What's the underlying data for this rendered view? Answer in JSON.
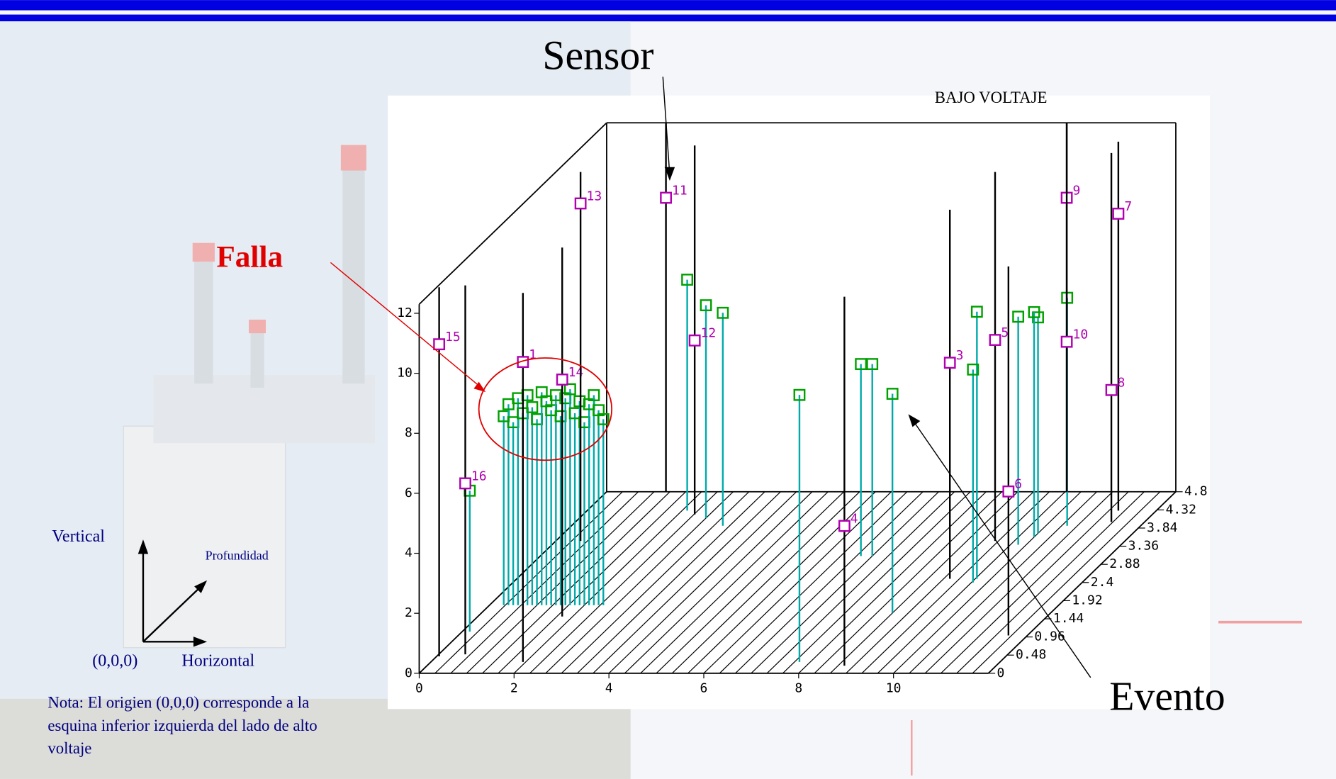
{
  "slide": {
    "sensor_label": "Sensor",
    "fault_label": "Falla",
    "event_label": "Evento",
    "axis_vertical": "Vertical",
    "axis_depth": "Profundidad",
    "axis_horizontal": "Horizontal",
    "origin": "(0,0,0)",
    "note": [
      "Nota: El origien (0,0,0) corresponde a la",
      "esquina inferior izquierda del lado de alto",
      "voltaje"
    ]
  },
  "chart_data": {
    "type": "scatter3d",
    "title": "BAJO VOLTAJE",
    "xlim": [
      0,
      12
    ],
    "xticks": [
      0,
      2,
      4,
      6,
      8,
      10
    ],
    "depthlim": [
      0,
      4.8
    ],
    "depthticks": [
      0,
      0.48,
      0.96,
      1.44,
      1.92,
      2.4,
      2.88,
      3.36,
      3.84,
      4.32,
      4.8
    ],
    "zlim": [
      0,
      12.3
    ],
    "zticks": [
      0,
      2,
      4,
      6,
      8,
      10,
      12
    ],
    "sensor_color": "#b000b0",
    "event_color": "#00a000",
    "stem_color": "#00aaaa",
    "sensors": [
      {
        "label": "15",
        "x": 0.05,
        "depth": 0.45,
        "z": 10.4
      },
      {
        "label": "16",
        "x": 0.56,
        "depth": 0.5,
        "z": 5.7
      },
      {
        "label": "1",
        "x": 1.94,
        "depth": 0.3,
        "z": 10.0
      },
      {
        "label": "14",
        "x": 1.78,
        "depth": 1.5,
        "z": 7.9
      },
      {
        "label": "13",
        "x": 0.52,
        "depth": 3.5,
        "z": 11.25
      },
      {
        "label": "11",
        "x": 1.25,
        "depth": 4.8,
        "z": 9.8
      },
      {
        "label": "12",
        "x": 2.35,
        "depth": 4.2,
        "z": 5.8
      },
      {
        "label": "4",
        "x": 8.8,
        "depth": 0.2,
        "z": 4.66
      },
      {
        "label": "3",
        "x": 9.13,
        "depth": 2.5,
        "z": 7.2
      },
      {
        "label": "5",
        "x": 9.26,
        "depth": 3.5,
        "z": 6.7
      },
      {
        "label": "6",
        "x": 11.6,
        "depth": 1.0,
        "z": 4.8
      },
      {
        "label": "9",
        "x": 9.7,
        "depth": 4.8,
        "z": 9.8
      },
      {
        "label": "10",
        "x": 9.7,
        "depth": 4.8,
        "z": 5.0
      },
      {
        "label": "7",
        "x": 11.2,
        "depth": 4.3,
        "z": 9.9
      },
      {
        "label": "8",
        "x": 11.3,
        "depth": 4.0,
        "z": 4.4
      }
    ],
    "events": [
      {
        "x": 7.77,
        "depth": 0.3,
        "z": 8.9
      },
      {
        "x": 2.11,
        "depth": 4.3,
        "z": 7.7
      },
      {
        "x": 2.67,
        "depth": 4.1,
        "z": 7.1
      },
      {
        "x": 3.19,
        "depth": 3.9,
        "z": 7.1
      },
      {
        "x": 0.16,
        "depth": 1.1,
        "z": 4.7
      },
      {
        "x": 6.76,
        "depth": 3.1,
        "z": 6.4
      },
      {
        "x": 7.0,
        "depth": 3.1,
        "z": 6.4
      },
      {
        "x": 8.66,
        "depth": 1.6,
        "z": 7.3
      },
      {
        "x": 9.7,
        "depth": 2.5,
        "z": 8.9
      },
      {
        "x": 9.7,
        "depth": 2.4,
        "z": 7.1
      },
      {
        "x": 9.83,
        "depth": 3.4,
        "z": 7.6
      },
      {
        "x": 10.0,
        "depth": 3.7,
        "z": 7.2
      },
      {
        "x": 10.0,
        "depth": 3.6,
        "z": 7.5
      },
      {
        "x": 10.45,
        "depth": 3.9,
        "z": 7.6
      },
      {
        "x": 0.3,
        "depth": 1.8,
        "z": 6.3
      },
      {
        "x": 0.4,
        "depth": 1.8,
        "z": 6.7
      },
      {
        "x": 0.5,
        "depth": 1.8,
        "z": 6.1
      },
      {
        "x": 0.6,
        "depth": 1.8,
        "z": 6.9
      },
      {
        "x": 0.7,
        "depth": 1.8,
        "z": 6.4
      },
      {
        "x": 0.8,
        "depth": 1.8,
        "z": 7.0
      },
      {
        "x": 0.9,
        "depth": 1.8,
        "z": 6.6
      },
      {
        "x": 1.0,
        "depth": 1.8,
        "z": 6.2
      },
      {
        "x": 1.1,
        "depth": 1.8,
        "z": 7.1
      },
      {
        "x": 1.2,
        "depth": 1.8,
        "z": 6.8
      },
      {
        "x": 1.3,
        "depth": 1.8,
        "z": 6.5
      },
      {
        "x": 1.4,
        "depth": 1.8,
        "z": 7.0
      },
      {
        "x": 1.5,
        "depth": 1.8,
        "z": 6.3
      },
      {
        "x": 1.6,
        "depth": 1.8,
        "z": 6.9
      },
      {
        "x": 1.7,
        "depth": 1.8,
        "z": 7.2
      },
      {
        "x": 1.8,
        "depth": 1.8,
        "z": 6.4
      },
      {
        "x": 1.9,
        "depth": 1.8,
        "z": 6.8
      },
      {
        "x": 2.0,
        "depth": 1.8,
        "z": 6.1
      },
      {
        "x": 2.1,
        "depth": 1.8,
        "z": 6.7
      },
      {
        "x": 2.2,
        "depth": 1.8,
        "z": 7.0
      },
      {
        "x": 2.3,
        "depth": 1.8,
        "z": 6.5
      },
      {
        "x": 2.4,
        "depth": 1.8,
        "z": 6.2
      }
    ]
  }
}
